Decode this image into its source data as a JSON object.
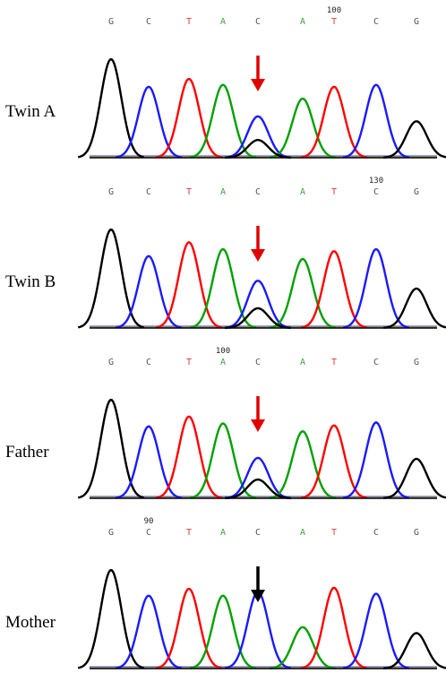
{
  "colors": {
    "G": "#000000",
    "C": "#1a1aff",
    "T": "#ff0000",
    "A": "#00a000",
    "mutant_arrow": "#e00000",
    "wildtype_arrow": "#000000",
    "baseline": "#000000"
  },
  "rows": [
    {
      "label": "Twin A",
      "sequence": [
        "G",
        "C",
        "T",
        "A",
        "C",
        "A",
        "T",
        "C",
        "G"
      ],
      "position_marker": "100",
      "marker_base_index": 6,
      "letter_colors": [
        "#555555",
        "#555555",
        "#d04040",
        "#40a040",
        "#555555",
        "#40a040",
        "#d04040",
        "#555555",
        "#555555"
      ],
      "peak_heights": [
        1.0,
        0.72,
        0.8,
        0.74,
        0.42,
        0.6,
        0.72,
        0.74,
        0.37
      ],
      "secondary_peak": {
        "base": "G",
        "base_index": 4,
        "height": 0.18
      },
      "arrow": "mutant"
    },
    {
      "label": "Twin B",
      "sequence": [
        "G",
        "C",
        "T",
        "A",
        "C",
        "A",
        "T",
        "C",
        "G"
      ],
      "position_marker": "130",
      "marker_base_index": 7,
      "letter_colors": [
        "#555555",
        "#555555",
        "#d04040",
        "#40a040",
        "#555555",
        "#40a040",
        "#d04040",
        "#555555",
        "#555555"
      ],
      "peak_heights": [
        1.0,
        0.73,
        0.87,
        0.8,
        0.48,
        0.7,
        0.78,
        0.8,
        0.4
      ],
      "secondary_peak": {
        "base": "G",
        "base_index": 4,
        "height": 0.2
      },
      "arrow": "mutant"
    },
    {
      "label": "Father",
      "sequence": [
        "G",
        "C",
        "T",
        "A",
        "C",
        "A",
        "T",
        "C",
        "G"
      ],
      "position_marker": "100",
      "marker_base_index": 3,
      "letter_colors": [
        "#555555",
        "#555555",
        "#d04040",
        "#40a040",
        "#555555",
        "#40a040",
        "#d04040",
        "#555555",
        "#555555"
      ],
      "peak_heights": [
        1.0,
        0.73,
        0.83,
        0.76,
        0.41,
        0.68,
        0.74,
        0.77,
        0.4
      ],
      "secondary_peak": {
        "base": "G",
        "base_index": 4,
        "height": 0.19
      },
      "arrow": "mutant"
    },
    {
      "label": "Mother",
      "sequence": [
        "G",
        "C",
        "T",
        "A",
        "C",
        "A",
        "T",
        "C",
        "G"
      ],
      "position_marker": "90",
      "marker_base_index": 1,
      "letter_colors": [
        "#555555",
        "#555555",
        "#d04040",
        "#40a040",
        "#555555",
        "#40a040",
        "#d04040",
        "#555555",
        "#555555"
      ],
      "peak_heights": [
        1.0,
        0.74,
        0.81,
        0.74,
        0.78,
        0.42,
        0.82,
        0.76,
        0.36
      ],
      "secondary_peak": null,
      "arrow": "wildtype"
    }
  ]
}
